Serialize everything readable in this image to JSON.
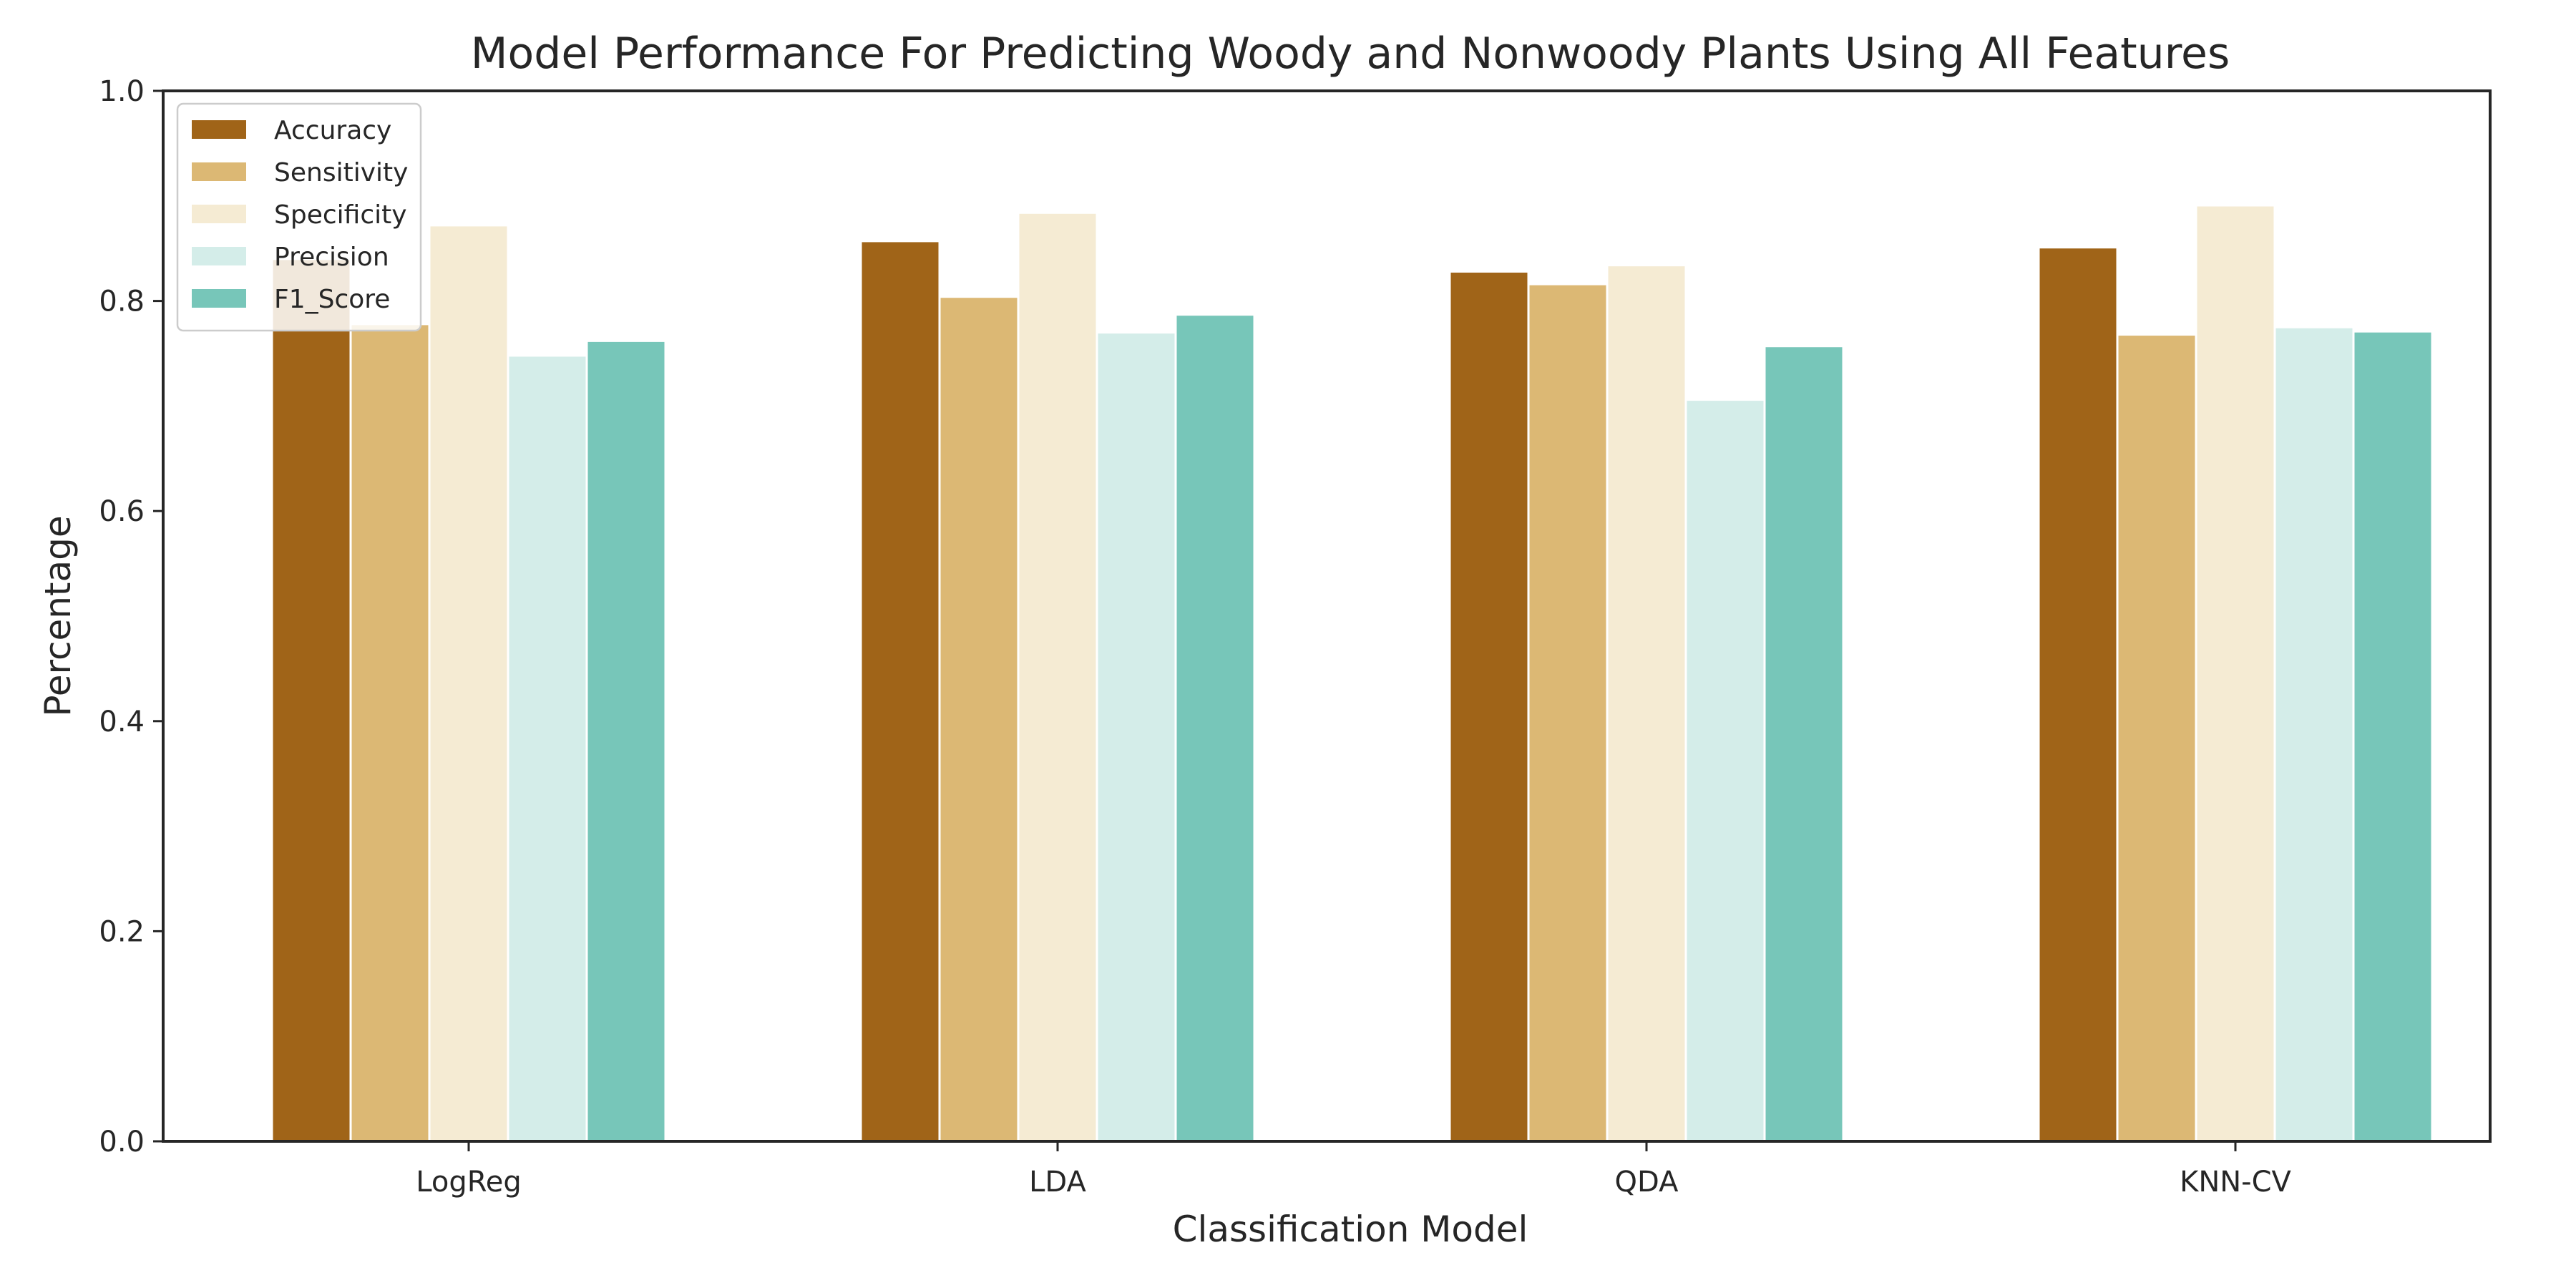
{
  "chart_data": {
    "type": "bar",
    "title": "Model Performance For Predicting Woody and Nonwoody Plants Using All Features",
    "xlabel": "Classification Model",
    "ylabel": "Percentage",
    "ylim": [
      0,
      1.0
    ],
    "yticks": [
      "0.0",
      "0.2",
      "0.4",
      "0.6",
      "0.8",
      "1.0"
    ],
    "categories": [
      "LogReg",
      "LDA",
      "QDA",
      "KNN-CV"
    ],
    "series": [
      {
        "name": "Accuracy",
        "color": "#a06418",
        "values": [
          0.84,
          0.857,
          0.828,
          0.851
        ]
      },
      {
        "name": "Sensitivity",
        "color": "#dcb874",
        "values": [
          0.778,
          0.804,
          0.816,
          0.768
        ]
      },
      {
        "name": "Specificity",
        "color": "#f5ebd3",
        "values": [
          0.872,
          0.884,
          0.834,
          0.891
        ]
      },
      {
        "name": "Precision",
        "color": "#d4ede9",
        "values": [
          0.748,
          0.77,
          0.706,
          0.775
        ]
      },
      {
        "name": "F1_Score",
        "color": "#77c6b9",
        "values": [
          0.762,
          0.787,
          0.757,
          0.771
        ]
      }
    ],
    "legend_position": "top-left",
    "grid": false
  }
}
